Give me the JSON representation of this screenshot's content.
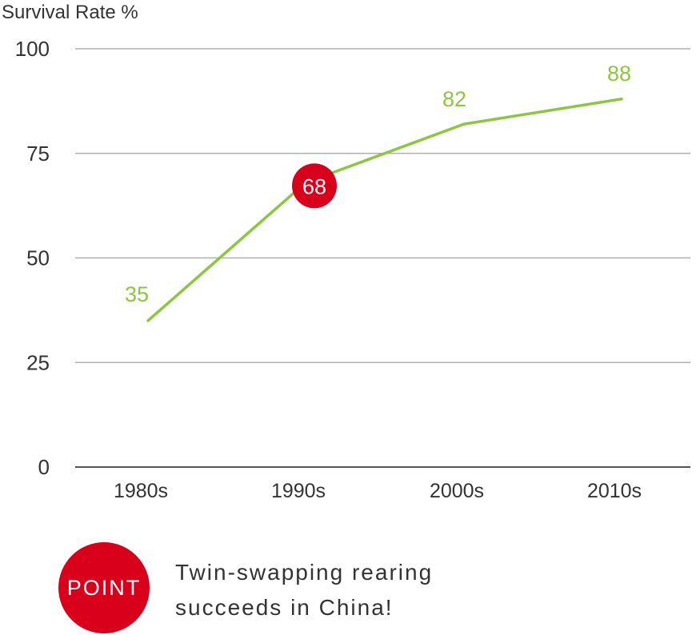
{
  "chart_data": {
    "type": "line",
    "ylabel": "Survival Rate %",
    "categories": [
      "1980s",
      "1990s",
      "2000s",
      "2010s"
    ],
    "series": [
      {
        "values": [
          35,
          68,
          82,
          88
        ]
      }
    ],
    "y_ticks": [
      "0",
      "25",
      "50",
      "75",
      "100"
    ],
    "ylim": [
      0,
      100
    ],
    "grid": true,
    "highlight": {
      "category": "1990s",
      "value": 68
    },
    "colors": {
      "line": "#8dc63f",
      "highlight": "#d9001b",
      "grid": "#b0b0b0",
      "axis": "#555555"
    }
  },
  "callout": {
    "badge": "POINT",
    "lines": [
      "Twin-swapping rearing",
      "succeeds in China!"
    ]
  }
}
